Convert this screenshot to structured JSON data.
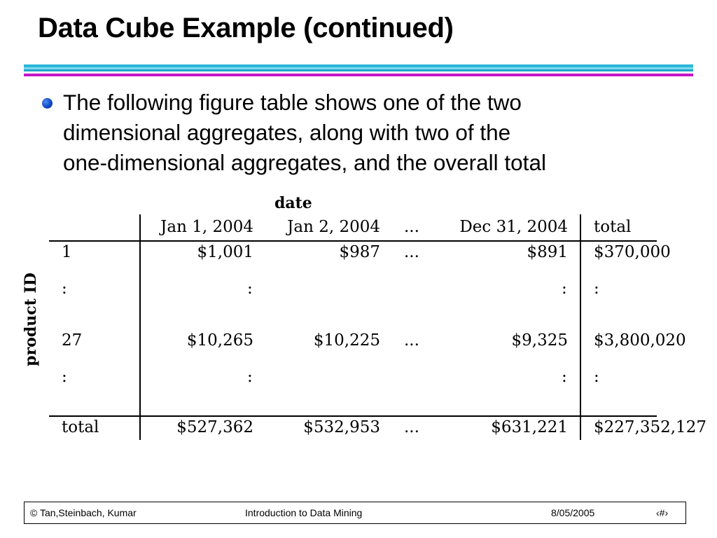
{
  "slide": {
    "title": "Data Cube Example (continued)",
    "bullet_lines": [
      "The following figure table shows one of the two",
      "dimensional aggregates, along with two of the",
      "one-dimensional aggregates, and the overall total"
    ]
  },
  "table": {
    "col_group_label": "date",
    "row_group_label": "product ID",
    "headers": [
      "Jan 1, 2004",
      "Jan 2, 2004",
      "...",
      "Dec 31, 2004",
      "total"
    ],
    "rows": [
      {
        "id": "1",
        "cells": [
          "$1,001",
          "$987",
          "...",
          "$891",
          "$370,000"
        ]
      },
      {
        "id": ":",
        "cells": [
          ":",
          "",
          "",
          ":",
          ":"
        ]
      },
      {
        "id": "27",
        "cells": [
          "$10,265",
          "$10,225",
          "...",
          "$9,325",
          "$3,800,020"
        ]
      },
      {
        "id": ":",
        "cells": [
          ":",
          "",
          "",
          ":",
          ":"
        ]
      },
      {
        "id": "total",
        "cells": [
          "$527,362",
          "$532,953",
          "...",
          "$631,221",
          "$227,352,127"
        ]
      }
    ]
  },
  "footer": {
    "authors": "© Tan,Steinbach, Kumar",
    "course": "Introduction to Data Mining",
    "date": "8/05/2005",
    "page": "‹#›"
  },
  "colors": {
    "title_rule_cyan": "#29b8d8",
    "title_rule_magenta": "#c516c5",
    "bullet_blue": "#0d49c6"
  }
}
